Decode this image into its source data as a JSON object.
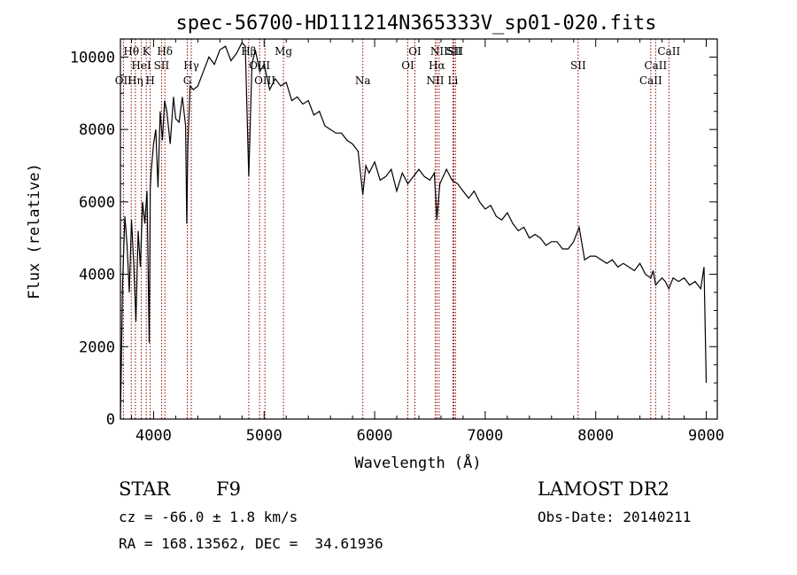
{
  "chart_data": {
    "type": "line",
    "title": "spec-56700-HD111214N365333V_sp01-020.fits",
    "xlabel": "Wavelength (Å)",
    "ylabel": "Flux (relative)",
    "xlim": [
      3700,
      9100
    ],
    "ylim": [
      0,
      10500
    ],
    "xticks": [
      4000,
      5000,
      6000,
      7000,
      8000,
      9000
    ],
    "yticks": [
      0,
      2000,
      4000,
      6000,
      8000,
      10000
    ],
    "series": [
      {
        "x": [
          3700,
          3720,
          3740,
          3760,
          3780,
          3800,
          3820,
          3840,
          3860,
          3880,
          3900,
          3920,
          3940,
          3960,
          3970,
          3980,
          4000,
          4020,
          4040,
          4060,
          4080,
          4100,
          4120,
          4150,
          4180,
          4200,
          4230,
          4260,
          4290,
          4300,
          4310,
          4330,
          4360,
          4400,
          4450,
          4500,
          4550,
          4600,
          4650,
          4700,
          4750,
          4800,
          4830,
          4861,
          4890,
          4920,
          4960,
          5000,
          5050,
          5100,
          5150,
          5200,
          5250,
          5300,
          5350,
          5400,
          5450,
          5500,
          5550,
          5600,
          5650,
          5700,
          5750,
          5800,
          5850,
          5893,
          5920,
          5950,
          6000,
          6050,
          6100,
          6150,
          6200,
          6250,
          6300,
          6350,
          6400,
          6450,
          6500,
          6540,
          6563,
          6590,
          6620,
          6650,
          6700,
          6750,
          6800,
          6850,
          6900,
          6950,
          7000,
          7050,
          7100,
          7150,
          7200,
          7250,
          7300,
          7350,
          7400,
          7450,
          7500,
          7550,
          7600,
          7650,
          7700,
          7750,
          7800,
          7850,
          7900,
          7950,
          8000,
          8050,
          8100,
          8150,
          8200,
          8250,
          8300,
          8350,
          8400,
          8450,
          8498,
          8520,
          8542,
          8570,
          8600,
          8630,
          8662,
          8700,
          8750,
          8800,
          8850,
          8900,
          8950,
          8980,
          9000
        ],
        "y": [
          0,
          3800,
          5600,
          4800,
          3500,
          5500,
          4300,
          2700,
          5200,
          4200,
          6000,
          5400,
          6300,
          2100,
          6400,
          6900,
          7600,
          8000,
          6400,
          8500,
          7700,
          8800,
          8500,
          7600,
          8900,
          8300,
          8200,
          8900,
          8100,
          5400,
          7500,
          9200,
          9100,
          9200,
          9600,
          10000,
          9800,
          10200,
          10300,
          9900,
          10100,
          10400,
          10300,
          6700,
          9800,
          10200,
          9600,
          9800,
          9100,
          9400,
          9200,
          9300,
          8800,
          8900,
          8700,
          8800,
          8400,
          8500,
          8100,
          8000,
          7900,
          7900,
          7700,
          7600,
          7400,
          6200,
          7000,
          6800,
          7100,
          6600,
          6700,
          6900,
          6300,
          6800,
          6500,
          6700,
          6900,
          6700,
          6600,
          6800,
          5500,
          6500,
          6700,
          6900,
          6600,
          6500,
          6300,
          6100,
          6300,
          6000,
          5800,
          5900,
          5600,
          5500,
          5700,
          5400,
          5200,
          5300,
          5000,
          5100,
          5000,
          4800,
          4900,
          4900,
          4700,
          4700,
          4900,
          5300,
          4400,
          4500,
          4500,
          4400,
          4300,
          4400,
          4200,
          4300,
          4200,
          4100,
          4300,
          4000,
          3900,
          4100,
          3700,
          3800,
          3900,
          3800,
          3600,
          3900,
          3800,
          3900,
          3700,
          3800,
          3600,
          4200,
          1000
        ]
      }
    ],
    "lines": [
      {
        "label": "OII",
        "x": 3727,
        "row": 2
      },
      {
        "label": "Hθ",
        "x": 3798,
        "row": 0
      },
      {
        "label": "Hη",
        "x": 3835,
        "row": 2
      },
      {
        "label": "HeI",
        "x": 3889,
        "row": 1
      },
      {
        "label": "K",
        "x": 3934,
        "row": 0
      },
      {
        "label": "H",
        "x": 3969,
        "row": 2
      },
      {
        "label": "SII",
        "x": 4072,
        "row": 1
      },
      {
        "label": "Hδ",
        "x": 4102,
        "row": 0
      },
      {
        "label": "G",
        "x": 4305,
        "row": 2
      },
      {
        "label": "Hγ",
        "x": 4341,
        "row": 1
      },
      {
        "label": "Hβ",
        "x": 4861,
        "row": 0
      },
      {
        "label": "OIII",
        "x": 4959,
        "row": 1
      },
      {
        "label": "OIII",
        "x": 5007,
        "row": 2
      },
      {
        "label": "Mg",
        "x": 5175,
        "row": 0
      },
      {
        "label": "Na",
        "x": 5893,
        "row": 2
      },
      {
        "label": "OI",
        "x": 6300,
        "row": 1
      },
      {
        "label": "OI",
        "x": 6364,
        "row": 0
      },
      {
        "label": "NII",
        "x": 6548,
        "row": 2
      },
      {
        "label": "Hα",
        "x": 6563,
        "row": 1
      },
      {
        "label": "NII",
        "x": 6583,
        "row": 0
      },
      {
        "label": "Li",
        "x": 6708,
        "row": 2
      },
      {
        "label": "SII",
        "x": 6716,
        "row": 0
      },
      {
        "label": "SII",
        "x": 6731,
        "row": 0
      },
      {
        "label": "SII",
        "x": 7841,
        "row": 1
      },
      {
        "label": "CaII",
        "x": 8498,
        "row": 2
      },
      {
        "label": "CaII",
        "x": 8542,
        "row": 1
      },
      {
        "label": "CaII",
        "x": 8662,
        "row": 0
      }
    ]
  },
  "footer": {
    "class_label": "STAR",
    "subclass": "F9",
    "survey": "LAMOST DR2",
    "cz": "cz = -66.0 ± 1.8 km/s",
    "obs_date": "Obs-Date: 20140211",
    "coords": "RA = 168.13562, DEC =  34.61936"
  }
}
